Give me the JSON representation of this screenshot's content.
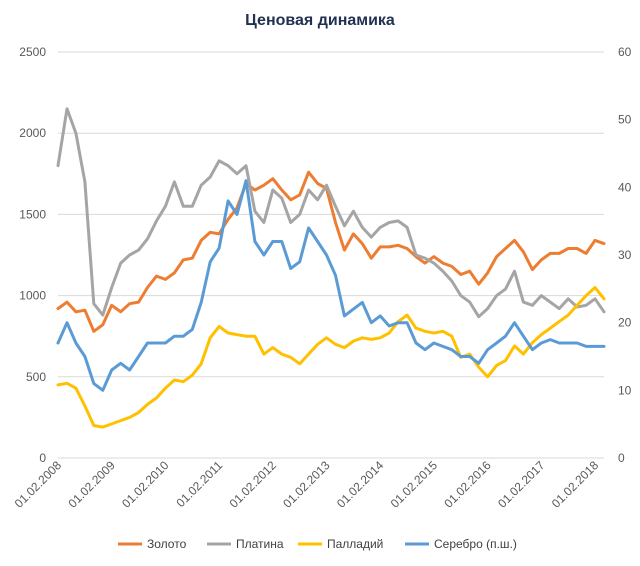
{
  "chart_data": {
    "type": "line",
    "title": "Ценовая динамика",
    "x": [
      "01.02.2008",
      "01.04.2008",
      "01.06.2008",
      "01.08.2008",
      "01.10.2008",
      "01.12.2008",
      "01.02.2009",
      "01.04.2009",
      "01.06.2009",
      "01.08.2009",
      "01.10.2009",
      "01.12.2009",
      "01.02.2010",
      "01.04.2010",
      "01.06.2010",
      "01.08.2010",
      "01.10.2010",
      "01.12.2010",
      "01.02.2011",
      "01.04.2011",
      "01.06.2011",
      "01.08.2011",
      "01.10.2011",
      "01.12.2011",
      "01.02.2012",
      "01.04.2012",
      "01.06.2012",
      "01.08.2012",
      "01.10.2012",
      "01.12.2012",
      "01.02.2013",
      "01.04.2013",
      "01.06.2013",
      "01.08.2013",
      "01.10.2013",
      "01.12.2013",
      "01.02.2014",
      "01.04.2014",
      "01.06.2014",
      "01.08.2014",
      "01.10.2014",
      "01.12.2014",
      "01.02.2015",
      "01.04.2015",
      "01.06.2015",
      "01.08.2015",
      "01.10.2015",
      "01.12.2015",
      "01.02.2016",
      "01.04.2016",
      "01.06.2016",
      "01.08.2016",
      "01.10.2016",
      "01.12.2016",
      "01.02.2017",
      "01.04.2017",
      "01.06.2017",
      "01.08.2017",
      "01.10.2017",
      "01.12.2017",
      "01.02.2018",
      "01.04.2018"
    ],
    "x_tick_labels": [
      "01.02.2008",
      "01.02.2009",
      "01.02.2010",
      "01.02.2011",
      "01.02.2012",
      "01.02.2013",
      "01.02.2014",
      "01.02.2015",
      "01.02.2016",
      "01.02.2017",
      "01.02.2018"
    ],
    "series": [
      {
        "name": "Золото",
        "axis": "left",
        "color": "#ED7D31",
        "values": [
          920,
          960,
          900,
          910,
          780,
          820,
          940,
          900,
          950,
          960,
          1050,
          1120,
          1100,
          1140,
          1220,
          1230,
          1340,
          1390,
          1380,
          1470,
          1540,
          1690,
          1650,
          1680,
          1720,
          1650,
          1590,
          1620,
          1760,
          1690,
          1660,
          1450,
          1280,
          1380,
          1320,
          1230,
          1300,
          1300,
          1310,
          1290,
          1240,
          1200,
          1240,
          1200,
          1180,
          1130,
          1150,
          1070,
          1140,
          1240,
          1290,
          1340,
          1270,
          1160,
          1220,
          1260,
          1260,
          1290,
          1290,
          1260,
          1340,
          1320
        ]
      },
      {
        "name": "Платина",
        "axis": "left",
        "color": "#A5A5A5",
        "values": [
          1800,
          2150,
          2000,
          1700,
          950,
          880,
          1050,
          1200,
          1250,
          1280,
          1350,
          1460,
          1550,
          1700,
          1550,
          1550,
          1680,
          1730,
          1830,
          1800,
          1750,
          1800,
          1520,
          1450,
          1650,
          1600,
          1450,
          1500,
          1650,
          1590,
          1680,
          1550,
          1430,
          1520,
          1420,
          1360,
          1420,
          1450,
          1460,
          1420,
          1250,
          1230,
          1200,
          1150,
          1090,
          1000,
          960,
          870,
          920,
          1000,
          1040,
          1150,
          960,
          940,
          1000,
          960,
          920,
          980,
          930,
          940,
          980,
          900
        ]
      },
      {
        "name": "Палладий",
        "axis": "left",
        "color": "#FFC000",
        "values": [
          450,
          460,
          430,
          320,
          200,
          190,
          210,
          230,
          250,
          280,
          330,
          370,
          430,
          480,
          470,
          510,
          580,
          740,
          810,
          770,
          760,
          750,
          750,
          640,
          680,
          640,
          620,
          580,
          640,
          700,
          740,
          700,
          680,
          720,
          740,
          730,
          740,
          770,
          840,
          880,
          800,
          780,
          770,
          780,
          750,
          620,
          640,
          560,
          500,
          570,
          600,
          690,
          640,
          710,
          760,
          800,
          840,
          880,
          940,
          1000,
          1050,
          980
        ]
      },
      {
        "name": "Серебро (п.ш.)",
        "axis": "right",
        "color": "#5B9BD5",
        "values": [
          17,
          20,
          17,
          15,
          11,
          10,
          13,
          14,
          13,
          15,
          17,
          17,
          17,
          18,
          18,
          19,
          23,
          29,
          31,
          38,
          36,
          41,
          32,
          30,
          32,
          32,
          28,
          29,
          34,
          32,
          30,
          27,
          21,
          22,
          23,
          20,
          21,
          19.5,
          20,
          20,
          17,
          16,
          17,
          16.5,
          16,
          15,
          15,
          14,
          16,
          17,
          18,
          20,
          18,
          16,
          17,
          17.5,
          17,
          17,
          17,
          16.5,
          16.5,
          16.5
        ]
      }
    ],
    "left_axis": {
      "min": 0,
      "max": 2500,
      "ticks": [
        0,
        500,
        1000,
        1500,
        2000,
        2500
      ]
    },
    "right_axis": {
      "min": 0,
      "max": 60,
      "ticks": [
        0,
        10,
        20,
        30,
        40,
        50,
        60
      ]
    },
    "grid": true,
    "legend_position": "bottom"
  }
}
